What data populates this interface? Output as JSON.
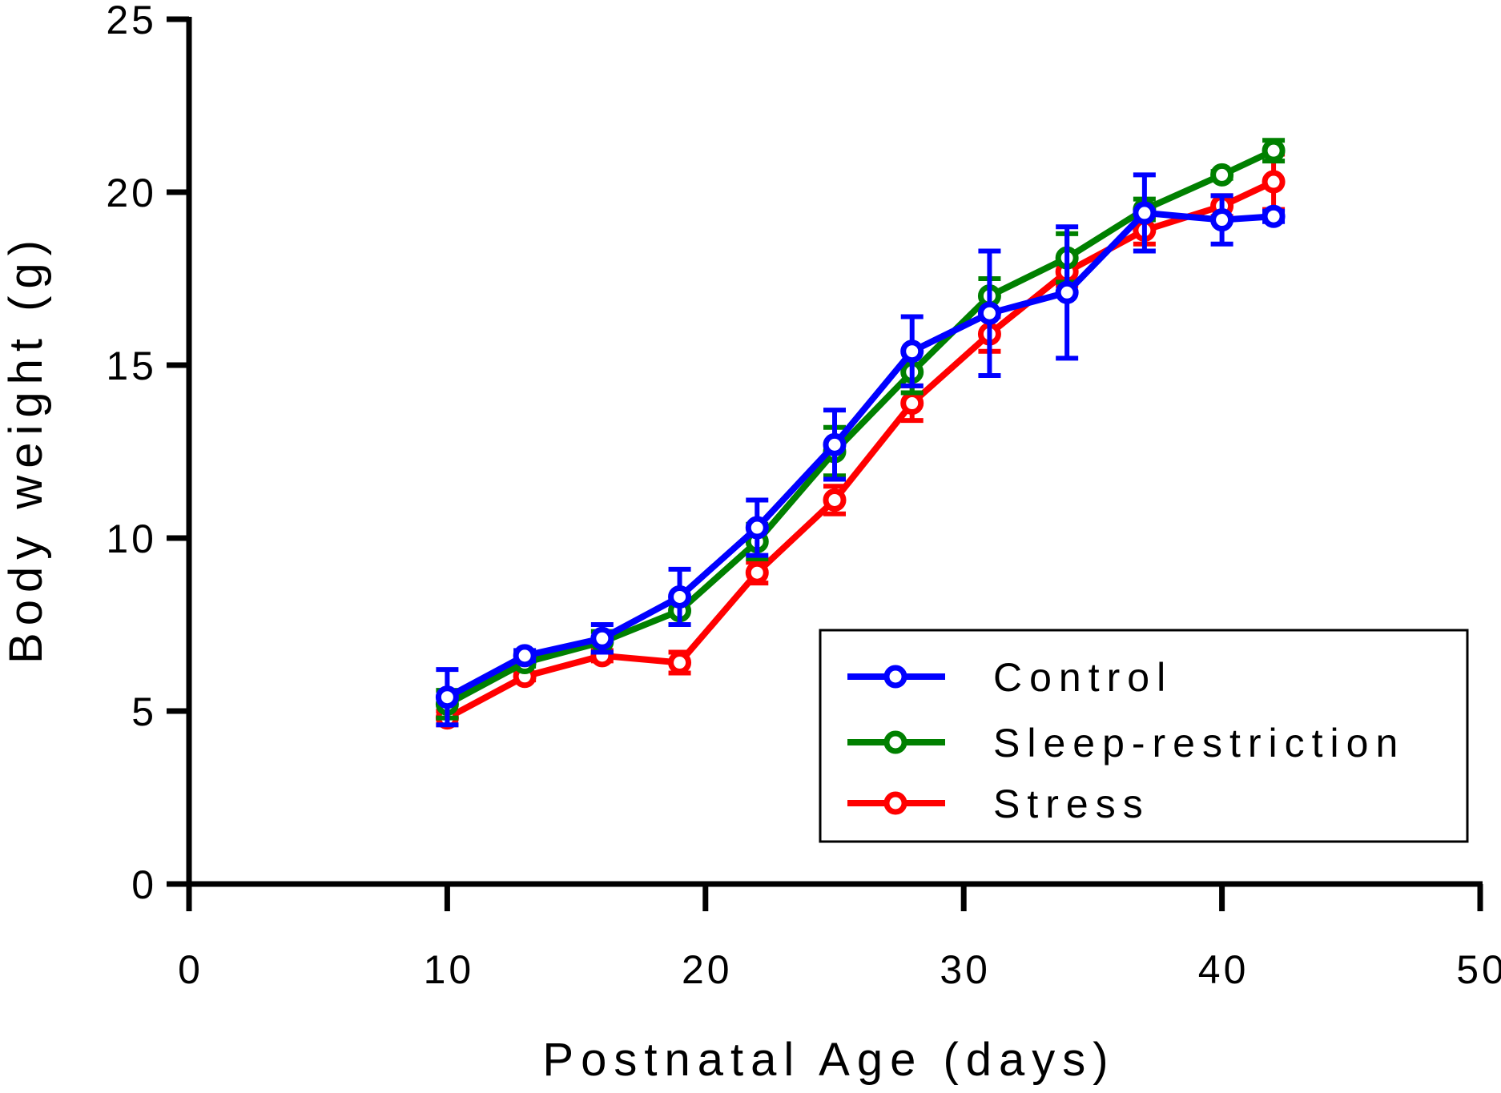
{
  "chart_data": {
    "type": "line",
    "title": "",
    "xlabel": "Postnatal Age (days)",
    "ylabel": "Body weight (g)",
    "xlim": [
      0,
      50
    ],
    "ylim": [
      0,
      25
    ],
    "xticks": [
      0,
      10,
      20,
      30,
      40,
      50
    ],
    "yticks": [
      0,
      5,
      10,
      15,
      20,
      25
    ],
    "grid": false,
    "legend_position": "bottom-right",
    "series": [
      {
        "name": "Control",
        "color": "#0000ff",
        "x": [
          10,
          13,
          16,
          19,
          22,
          25,
          28,
          31,
          34,
          37,
          40,
          42
        ],
        "y": [
          5.4,
          6.6,
          7.1,
          8.3,
          10.3,
          12.7,
          15.4,
          16.5,
          17.1,
          19.4,
          19.2,
          19.3
        ],
        "err": [
          0.8,
          0.15,
          0.4,
          0.8,
          0.8,
          1.0,
          1.0,
          1.8,
          1.9,
          1.1,
          0.7,
          0.15
        ]
      },
      {
        "name": "Sleep-restriction",
        "color": "#008000",
        "x": [
          10,
          13,
          16,
          19,
          22,
          25,
          28,
          31,
          34,
          37,
          40,
          42
        ],
        "y": [
          5.2,
          6.4,
          7.0,
          7.9,
          9.9,
          12.5,
          14.8,
          17.0,
          18.1,
          19.5,
          20.5,
          21.2
        ],
        "err": [
          0.4,
          0.1,
          0.3,
          0.4,
          0.5,
          0.7,
          0.6,
          0.5,
          0.7,
          0.3,
          0.1,
          0.3
        ]
      },
      {
        "name": "Stress",
        "color": "#ff0000",
        "x": [
          10,
          13,
          16,
          19,
          22,
          25,
          28,
          31,
          34,
          37,
          40,
          42
        ],
        "y": [
          4.8,
          6.0,
          6.6,
          6.4,
          9.0,
          11.1,
          13.9,
          15.9,
          17.7,
          18.9,
          19.6,
          20.3
        ],
        "err": [
          0.2,
          0.1,
          0.15,
          0.3,
          0.3,
          0.4,
          0.5,
          0.5,
          0.4,
          0.4,
          0.3,
          0.8
        ]
      }
    ]
  }
}
